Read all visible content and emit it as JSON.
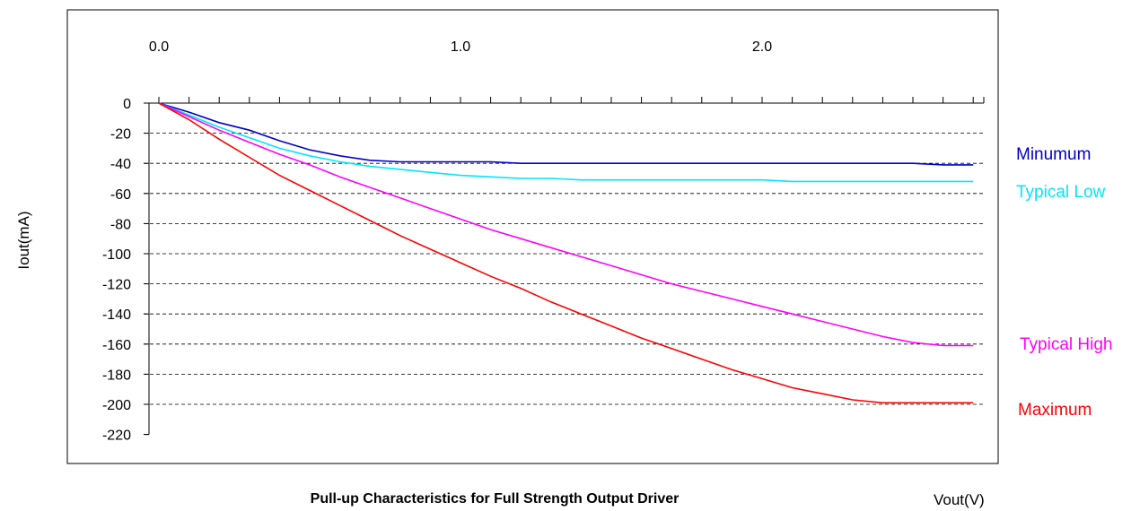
{
  "chart_data": {
    "type": "line",
    "title": "Pull-up Characteristics for Full Strength Output Driver",
    "xlabel": "Vout(V)",
    "ylabel": "Iout(mA)",
    "xlim": [
      0,
      2.7
    ],
    "ylim": [
      -220,
      0
    ],
    "x_tick_labels": [
      "0.0",
      "1.0",
      "2.0"
    ],
    "x_tick_values": [
      0,
      1,
      2
    ],
    "y_ticks": [
      0,
      -20,
      -40,
      -60,
      -80,
      -100,
      -120,
      -140,
      -160,
      -180,
      -200,
      -220
    ],
    "grid": "horizontal dashed",
    "legend_placement": "right",
    "x": [
      0,
      0.1,
      0.2,
      0.3,
      0.4,
      0.5,
      0.6,
      0.7,
      0.8,
      0.9,
      1.0,
      1.1,
      1.2,
      1.3,
      1.4,
      1.5,
      1.6,
      1.7,
      1.8,
      1.9,
      2.0,
      2.1,
      2.2,
      2.3,
      2.4,
      2.5,
      2.6,
      2.7
    ],
    "series": [
      {
        "name": "Minumum",
        "color": "#0000CC",
        "values": [
          0,
          -6,
          -13,
          -18,
          -25,
          -31,
          -35,
          -38,
          -39,
          -39,
          -39,
          -39,
          -40,
          -40,
          -40,
          -40,
          -40,
          -40,
          -40,
          -40,
          -40,
          -40,
          -40,
          -40,
          -40,
          -40,
          -41,
          -41
        ]
      },
      {
        "name": "Typical Low",
        "color": "#00E5FF",
        "values": [
          0,
          -8,
          -16,
          -23,
          -30,
          -35,
          -39,
          -42,
          -44,
          -46,
          -48,
          -49,
          -50,
          -50,
          -51,
          -51,
          -51,
          -51,
          -51,
          -51,
          -51,
          -52,
          -52,
          -52,
          -52,
          -52,
          -52,
          -52
        ]
      },
      {
        "name": "Typical High",
        "color": "#FF00FF",
        "values": [
          0,
          -9,
          -18,
          -26,
          -34,
          -41,
          -49,
          -56,
          -63,
          -70,
          -77,
          -84,
          -90,
          -96,
          -102,
          -108,
          -114,
          -120,
          -125,
          -130,
          -135,
          -140,
          -145,
          -150,
          -155,
          -159,
          -161,
          -161
        ]
      },
      {
        "name": "Maximum",
        "color": "#FF0000",
        "values": [
          0,
          -11,
          -24,
          -36,
          -48,
          -58,
          -68,
          -78,
          -88,
          -97,
          -106,
          -115,
          -123,
          -132,
          -140,
          -148,
          -156,
          -163,
          -170,
          -177,
          -183,
          -189,
          -193,
          -197,
          -199,
          -199,
          -199,
          -199
        ]
      }
    ]
  }
}
